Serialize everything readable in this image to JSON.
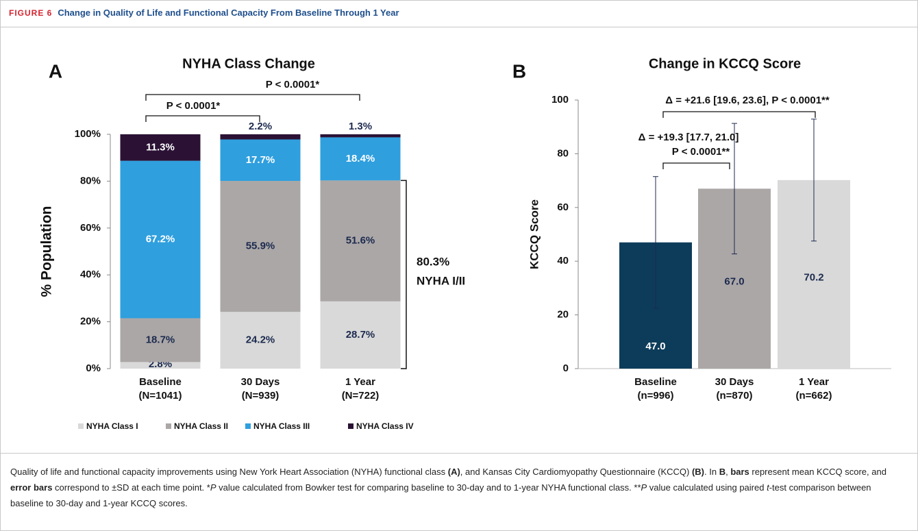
{
  "header": {
    "label": "FIGURE 6",
    "title": "Change in Quality of Life and Functional Capacity From Baseline Through 1 Year"
  },
  "chart_data": [
    {
      "type": "stacked-bar",
      "panel": "A",
      "title": "NYHA Class Change",
      "ylabel": "% Population",
      "categories": [
        "Baseline",
        "30 Days",
        "1 Year"
      ],
      "category_counts": [
        "(N=1041)",
        "(N=939)",
        "(N=722)"
      ],
      "ylim": [
        0,
        100
      ],
      "yticks": [
        {
          "value": 0,
          "label": "0%"
        },
        {
          "value": 20,
          "label": "20%"
        },
        {
          "value": 40,
          "label": "40%"
        },
        {
          "value": 60,
          "label": "60%"
        },
        {
          "value": 80,
          "label": "80%"
        },
        {
          "value": 100,
          "label": "100%"
        }
      ],
      "series": [
        {
          "name": "NYHA Class I",
          "color": "#d9d9d9",
          "values": [
            2.8,
            24.2,
            28.7
          ],
          "value_labels": [
            "2.8%",
            "24.2%",
            "28.7%"
          ]
        },
        {
          "name": "NYHA Class II",
          "color": "#aba7a7",
          "values": [
            18.7,
            55.9,
            51.6
          ],
          "value_labels": [
            "18.7%",
            "55.9%",
            "51.6%"
          ]
        },
        {
          "name": "NYHA Class III",
          "color": "#2f9fde",
          "values": [
            67.2,
            17.7,
            18.4
          ],
          "value_labels": [
            "67.2%",
            "17.7%",
            "18.4%"
          ]
        },
        {
          "name": "NYHA Class IV",
          "color": "#2b1235",
          "values": [
            11.3,
            2.2,
            1.3
          ],
          "value_labels": [
            "11.3%",
            "2.2%",
            "1.3%"
          ]
        }
      ],
      "comparisons": [
        {
          "label": "P < 0.0001*"
        },
        {
          "label": "P < 0.0001*"
        }
      ],
      "range_annotation": {
        "value": 80.3,
        "label": "80.3%",
        "text": "NYHA I/II"
      }
    },
    {
      "type": "bar",
      "panel": "B",
      "title": "Change in KCCQ Score",
      "ylabel": "KCCQ Score",
      "categories": [
        "Baseline",
        "30 Days",
        "1 Year"
      ],
      "category_counts": [
        "(n=996)",
        "(n=870)",
        "(n=662)"
      ],
      "values": [
        47.0,
        67.0,
        70.2
      ],
      "value_labels": [
        "47.0",
        "67.0",
        "70.2"
      ],
      "errors": [
        24.5,
        24.3,
        22.7
      ],
      "colors": [
        "#0d3c5a",
        "#aba7a7",
        "#d9d9d9"
      ],
      "ylim": [
        0,
        100
      ],
      "yticks": [
        0,
        20,
        40,
        60,
        80,
        100
      ],
      "comparisons": [
        {
          "lines": [
            "Δ = +19.3 [17.7, 21.0]",
            "P < 0.0001**"
          ]
        },
        {
          "lines": [
            "Δ = +21.6 [19.6, 23.6], P < 0.0001**"
          ]
        }
      ]
    }
  ],
  "caption": [
    {
      "text": "Quality of life and functional capacity improvements using New York Heart Association (NYHA) functional class "
    },
    {
      "text": "(A)",
      "style": "bold"
    },
    {
      "text": ", and Kansas City Cardiomyopathy Questionnaire (KCCQ) "
    },
    {
      "text": "(B)",
      "style": "bold"
    },
    {
      "text": ". In "
    },
    {
      "text": "B",
      "style": "bold"
    },
    {
      "text": ", "
    },
    {
      "text": "bars",
      "style": "bold"
    },
    {
      "text": " represent mean KCCQ score, and "
    },
    {
      "text": "error bars",
      "style": "bold"
    },
    {
      "text": " correspond to ±SD at each time point. *"
    },
    {
      "text": "P",
      "style": "italic"
    },
    {
      "text": " value calculated from Bowker test for comparing baseline to 30-day and to 1-year NYHA functional class. **"
    },
    {
      "text": "P",
      "style": "italic"
    },
    {
      "text": " value calculated using paired "
    },
    {
      "text": "t",
      "style": "italic"
    },
    {
      "text": "-test comparison between baseline to 30-day and 1-year KCCQ scores."
    }
  ]
}
